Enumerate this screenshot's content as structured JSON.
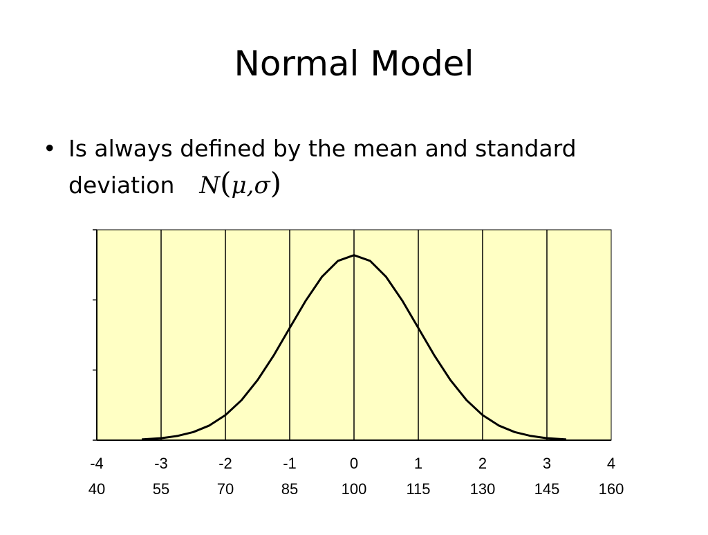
{
  "slide": {
    "title": "Normal Model",
    "bullet": {
      "text_line1": "Is always defined by the mean and standard",
      "text_line2": "deviation",
      "formula": {
        "letter": "N",
        "open": "(",
        "mu": "μ",
        "comma": ",",
        "sigma": "σ",
        "close": ")"
      }
    }
  },
  "chart_data": {
    "type": "line",
    "title": "",
    "xlabel": "",
    "ylabel": "",
    "xlim": [
      -4,
      4
    ],
    "ylim": [
      0,
      0.4
    ],
    "grid": "vertical",
    "background_color": "#ffffc4",
    "line_color": "#000000",
    "x_ticks": [
      -4,
      -3,
      -2,
      -1,
      0,
      1,
      2,
      3,
      4
    ],
    "z_tick_labels": [
      "-4",
      "-3",
      "-2",
      "-1",
      "0",
      "1",
      "2",
      "3",
      "4"
    ],
    "score_tick_labels": [
      "40",
      "55",
      "70",
      "85",
      "100",
      "115",
      "130",
      "145",
      "160"
    ],
    "series": [
      {
        "x": [
          -3.3,
          -3.0,
          -2.75,
          -2.5,
          -2.25,
          -2.0,
          -1.75,
          -1.5,
          -1.25,
          -1.0,
          -0.75,
          -0.5,
          -0.25,
          0.0,
          0.25,
          0.5,
          0.75,
          1.0,
          1.25,
          1.5,
          1.75,
          2.0,
          2.25,
          2.5,
          2.75,
          3.0,
          3.3
        ],
        "y": [
          0.0017,
          0.0044,
          0.0091,
          0.0175,
          0.0317,
          0.054,
          0.0863,
          0.1295,
          0.1826,
          0.242,
          0.3011,
          0.3521,
          0.3867,
          0.3989,
          0.3867,
          0.3521,
          0.3011,
          0.242,
          0.1826,
          0.1295,
          0.0863,
          0.054,
          0.0317,
          0.0175,
          0.0091,
          0.0044,
          0.0017
        ]
      }
    ]
  }
}
